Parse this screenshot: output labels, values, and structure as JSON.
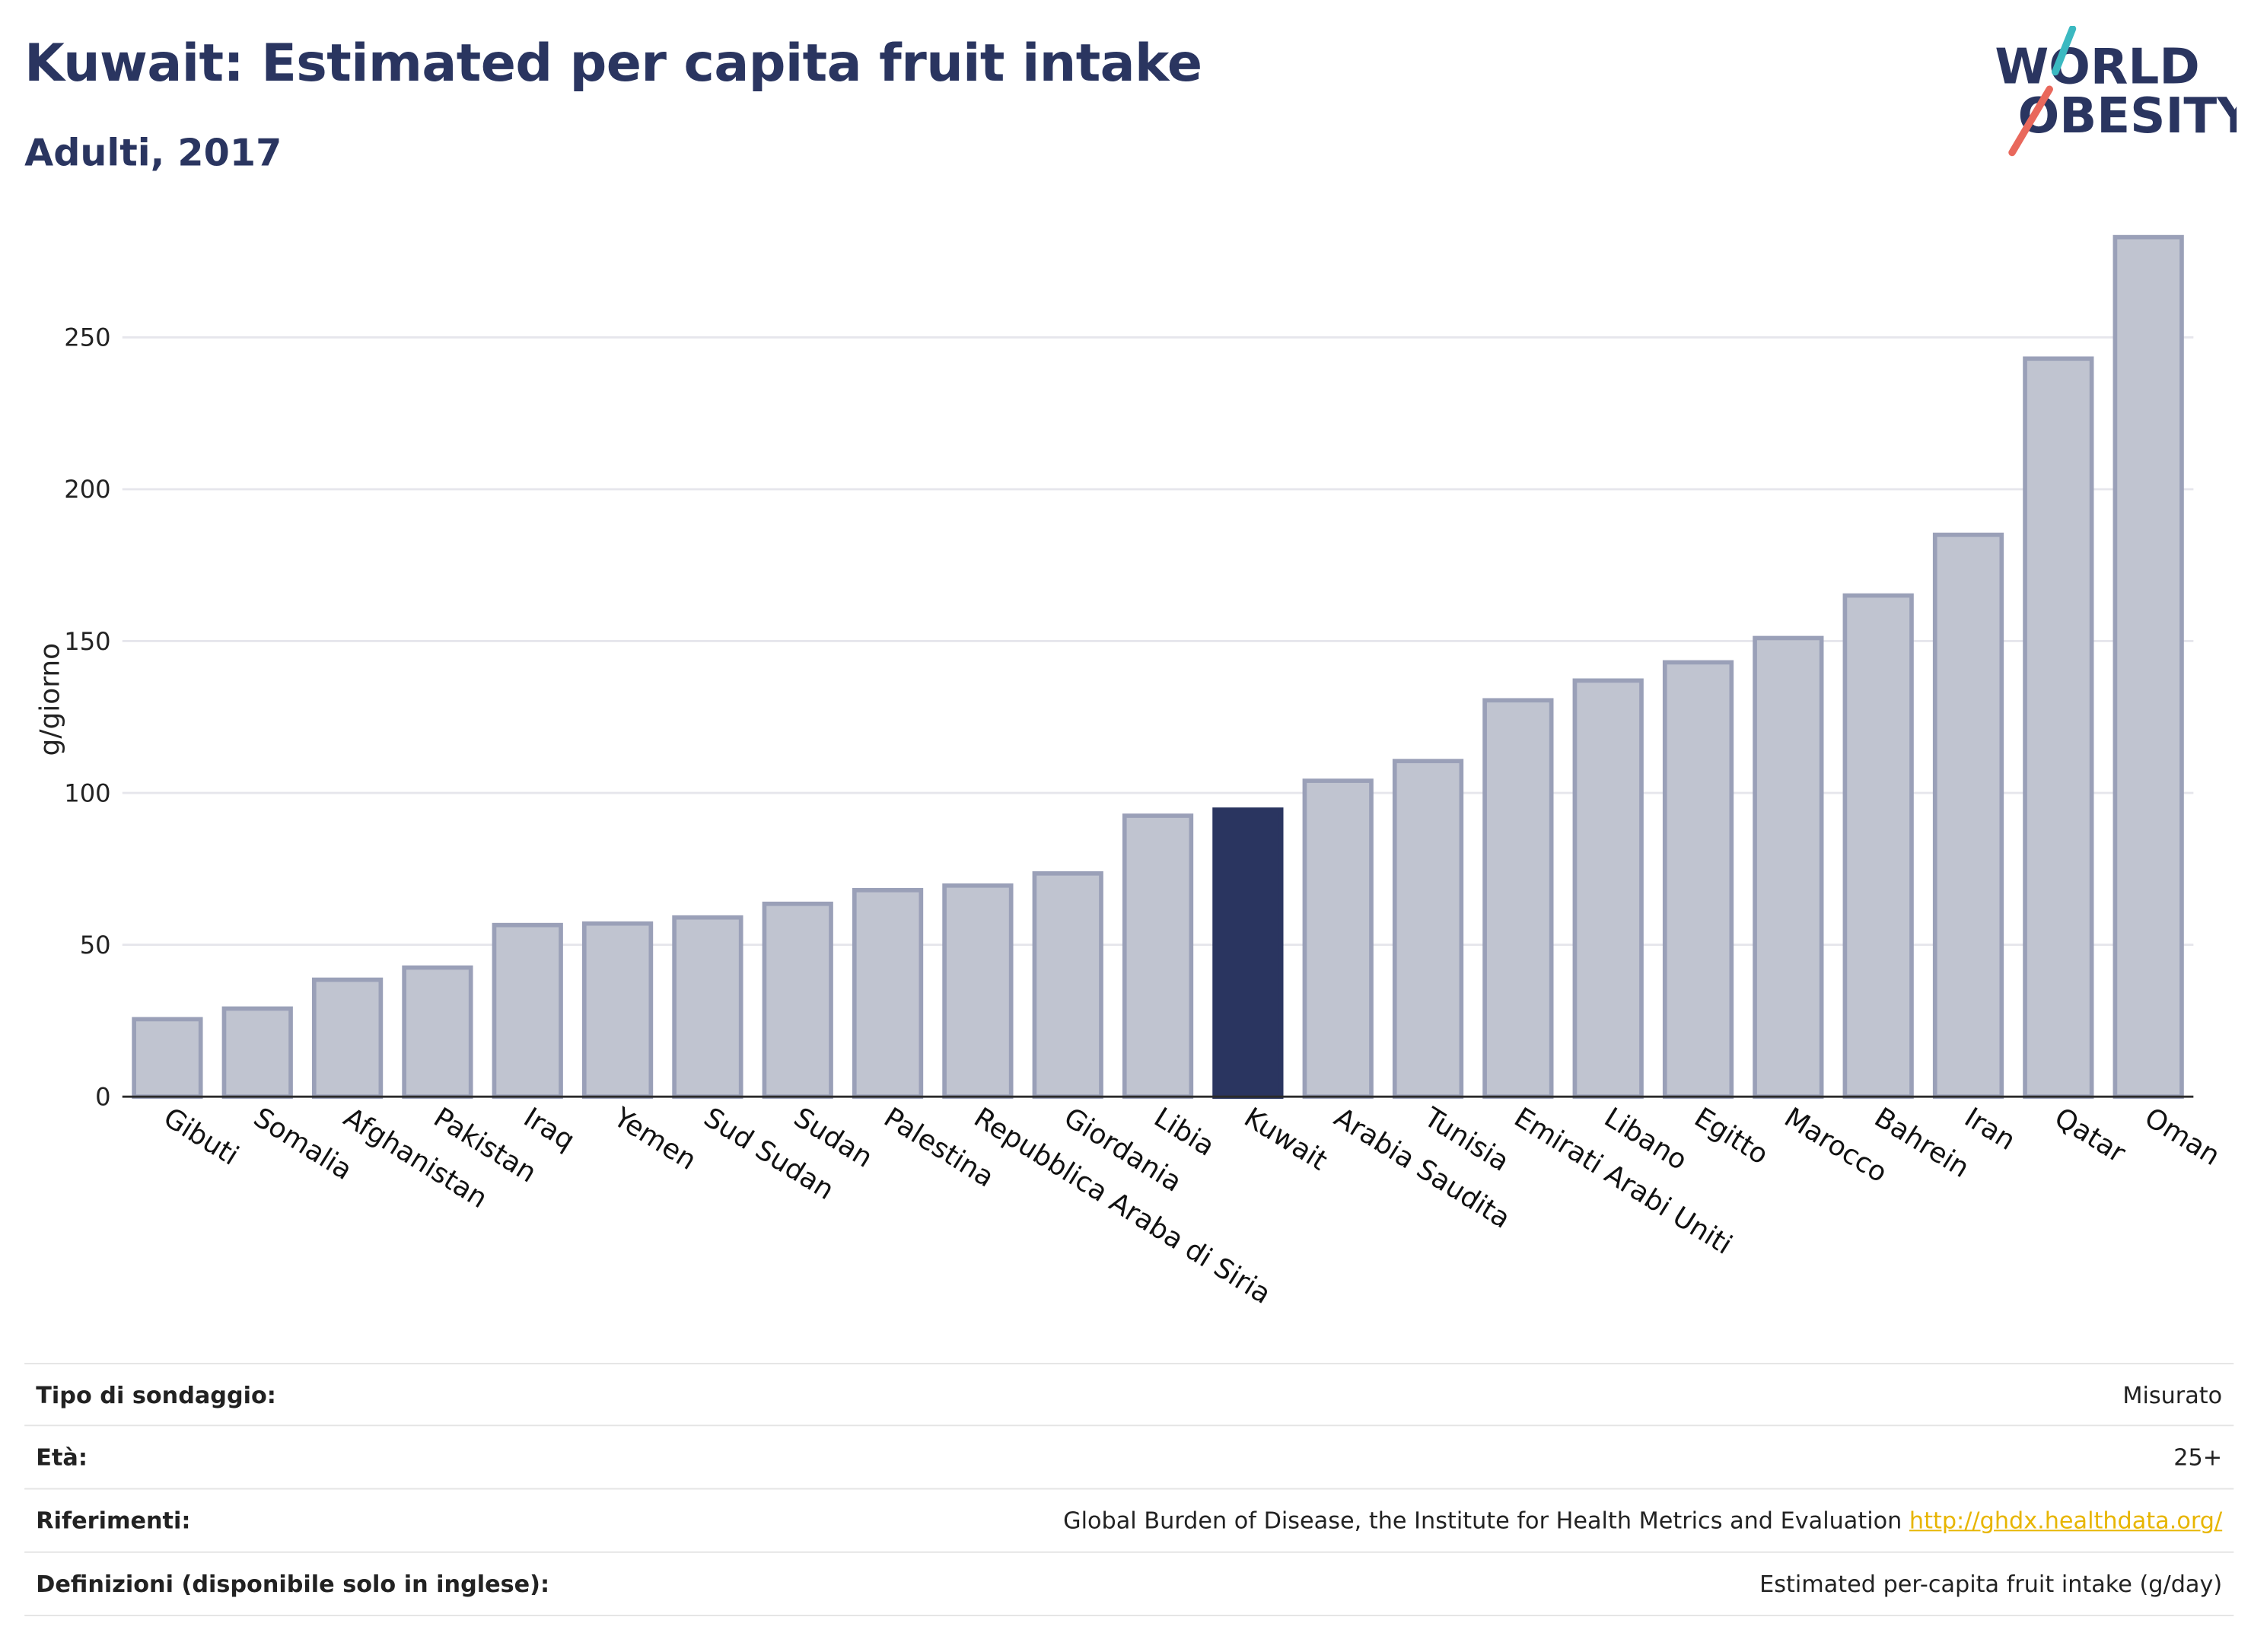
{
  "header": {
    "title": "Kuwait: Estimated per capita fruit intake",
    "subtitle": "Adulti, 2017",
    "logo_line1": "WORLD",
    "logo_line2": "OBESITY"
  },
  "colors": {
    "bar": "#c0c4d0",
    "bar_border": "#9aa0b8",
    "highlight": "#2a3560",
    "grid": "#e6e6ec",
    "text": "#2a3560",
    "logo_teal": "#3bb9c1",
    "logo_coral": "#e9685c"
  },
  "chart_data": {
    "type": "bar",
    "ylabel": "g/giorno",
    "xlabel": "",
    "ylim": [
      0,
      290
    ],
    "yticks": [
      0,
      50,
      100,
      150,
      200,
      250
    ],
    "grid": true,
    "highlight": "Kuwait",
    "categories": [
      "Gibuti",
      "Somalia",
      "Afghanistan",
      "Pakistan",
      "Iraq",
      "Yemen",
      "Sud Sudan",
      "Sudan",
      "Palestina",
      "Repubblica Araba di Siria",
      "Giordania",
      "Libia",
      "Kuwait",
      "Arabia Saudita",
      "Tunisia",
      "Emirati Arabi Uniti",
      "Libano",
      "Egitto",
      "Marocco",
      "Bahrein",
      "Iran",
      "Qatar",
      "Oman"
    ],
    "values": [
      25.5,
      29,
      38.5,
      42.5,
      56.5,
      57,
      59,
      63.5,
      68,
      69.5,
      73.5,
      92.5,
      94.5,
      104,
      110.5,
      130.5,
      137,
      143,
      151,
      165,
      185,
      243,
      283
    ]
  },
  "meta": [
    {
      "key": "Tipo di sondaggio:",
      "value": "Misurato"
    },
    {
      "key": "Età:",
      "value": "25+"
    },
    {
      "key": "Riferimenti:",
      "value": "Global Burden of Disease, the Institute for Health Metrics and Evaluation",
      "link": "http://ghdx.healthdata.org/"
    },
    {
      "key": "Definizioni (disponibile solo in inglese):",
      "value": "Estimated per-capita fruit intake (g/day)"
    }
  ]
}
